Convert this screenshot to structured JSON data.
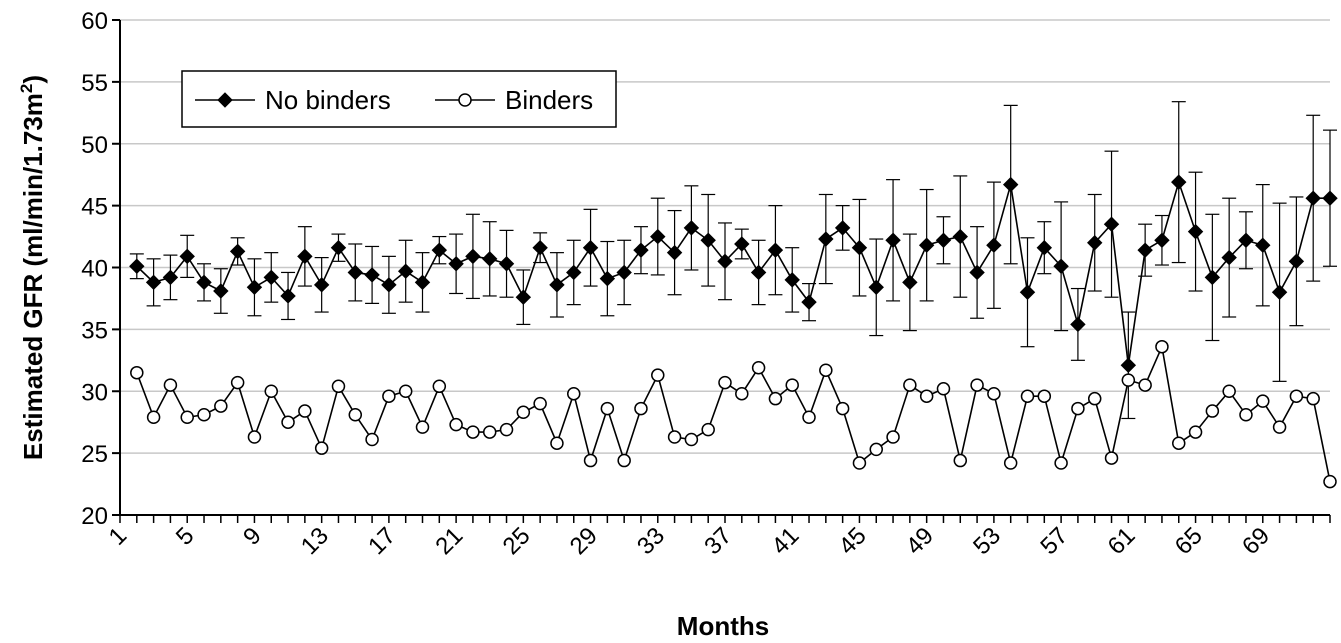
{
  "chart_data": {
    "type": "line",
    "xlabel": "Months",
    "ylabel_main": "Estimated GFR (ml/min/1.73m",
    "ylabel_sup": "2",
    "ylabel_close": ")",
    "ylim": [
      20,
      60
    ],
    "yticks": [
      20,
      25,
      30,
      35,
      40,
      45,
      50,
      55,
      60
    ],
    "xlim": [
      1,
      73
    ],
    "xtick_labels": [
      "1",
      "5",
      "9",
      "13",
      "17",
      "21",
      "25",
      "29",
      "33",
      "37",
      "41",
      "45",
      "49",
      "53",
      "57",
      "61",
      "65",
      "69"
    ],
    "grid": "horizontal",
    "legend_position": "top-left",
    "series": [
      {
        "name": "No binders",
        "marker": "diamond-filled",
        "color": "#000000",
        "x": [
          2,
          3,
          4,
          5,
          6,
          7,
          8,
          9,
          10,
          11,
          12,
          13,
          14,
          15,
          16,
          17,
          18,
          19,
          20,
          21,
          22,
          23,
          24,
          25,
          26,
          27,
          28,
          29,
          30,
          31,
          32,
          33,
          34,
          35,
          36,
          37,
          38,
          39,
          40,
          41,
          42,
          43,
          44,
          45,
          46,
          47,
          48,
          49,
          50,
          51,
          52,
          53,
          54,
          55,
          56,
          57,
          58,
          59,
          60,
          61,
          62,
          63,
          64,
          65,
          66,
          67,
          68,
          69,
          70,
          71,
          72,
          73
        ],
        "values": [
          40.1,
          38.8,
          39.2,
          40.9,
          38.8,
          38.1,
          41.3,
          38.4,
          39.2,
          37.7,
          40.9,
          38.6,
          41.6,
          39.6,
          39.4,
          38.6,
          39.7,
          38.8,
          41.4,
          40.3,
          40.9,
          40.7,
          40.3,
          37.6,
          41.6,
          38.6,
          39.6,
          41.6,
          39.1,
          39.6,
          41.4,
          42.5,
          41.2,
          43.2,
          42.2,
          40.5,
          41.9,
          39.6,
          41.4,
          39.0,
          37.2,
          42.3,
          43.2,
          41.6,
          38.4,
          42.2,
          38.8,
          41.8,
          42.2,
          42.5,
          39.6,
          41.8,
          46.7,
          38.0,
          41.6,
          40.1,
          35.4,
          42.0,
          43.5,
          32.1,
          41.4,
          42.2,
          46.9,
          42.9,
          39.2,
          40.8,
          42.2,
          41.8,
          38.0,
          40.5,
          45.6,
          45.6
        ],
        "errors": [
          1.0,
          1.9,
          1.8,
          1.7,
          1.5,
          1.8,
          1.1,
          2.3,
          2.0,
          1.9,
          2.4,
          2.2,
          1.1,
          2.3,
          2.3,
          2.3,
          2.5,
          2.4,
          1.1,
          2.4,
          3.4,
          3.0,
          2.7,
          2.2,
          1.2,
          2.6,
          2.6,
          3.1,
          3.0,
          2.6,
          1.9,
          3.1,
          3.4,
          3.4,
          3.7,
          3.1,
          1.2,
          2.6,
          3.6,
          2.6,
          1.5,
          3.6,
          1.8,
          3.9,
          3.9,
          4.9,
          3.9,
          4.5,
          1.9,
          4.9,
          3.7,
          5.1,
          6.4,
          4.4,
          2.1,
          5.2,
          2.9,
          3.9,
          5.9,
          4.3,
          2.1,
          2.0,
          6.5,
          4.8,
          5.1,
          4.8,
          2.3,
          4.9,
          7.2,
          5.2,
          6.7,
          5.5
        ]
      },
      {
        "name": "Binders",
        "marker": "circle-open",
        "color": "#000000",
        "x": [
          2,
          3,
          4,
          5,
          6,
          7,
          8,
          9,
          10,
          11,
          12,
          13,
          14,
          15,
          16,
          17,
          18,
          19,
          20,
          21,
          22,
          23,
          24,
          25,
          26,
          27,
          28,
          29,
          30,
          31,
          32,
          33,
          34,
          35,
          36,
          37,
          38,
          39,
          40,
          41,
          42,
          43,
          44,
          45,
          46,
          47,
          48,
          49,
          50,
          51,
          52,
          53,
          54,
          55,
          56,
          57,
          58,
          59,
          60,
          61,
          62,
          63,
          64,
          65,
          66,
          67,
          68,
          69,
          70,
          71,
          72,
          73
        ],
        "values": [
          31.5,
          27.9,
          30.5,
          27.9,
          28.1,
          28.8,
          30.7,
          26.3,
          30.0,
          27.5,
          28.4,
          25.4,
          30.4,
          28.1,
          26.1,
          29.6,
          30.0,
          27.1,
          30.4,
          27.3,
          26.7,
          26.7,
          26.9,
          28.3,
          29.0,
          25.8,
          29.8,
          24.4,
          28.6,
          24.4,
          28.6,
          31.3,
          26.3,
          26.1,
          26.9,
          30.7,
          29.8,
          31.9,
          29.4,
          30.5,
          27.9,
          31.7,
          28.6,
          24.2,
          25.3,
          26.3,
          30.5,
          29.6,
          30.2,
          24.4,
          30.5,
          29.8,
          24.2,
          29.6,
          29.6,
          24.2,
          28.6,
          29.4,
          24.6,
          30.9,
          30.5,
          33.6,
          25.8,
          26.7,
          28.4,
          30.0,
          28.1,
          29.2,
          27.1,
          29.6,
          29.4,
          22.7
        ]
      }
    ]
  }
}
